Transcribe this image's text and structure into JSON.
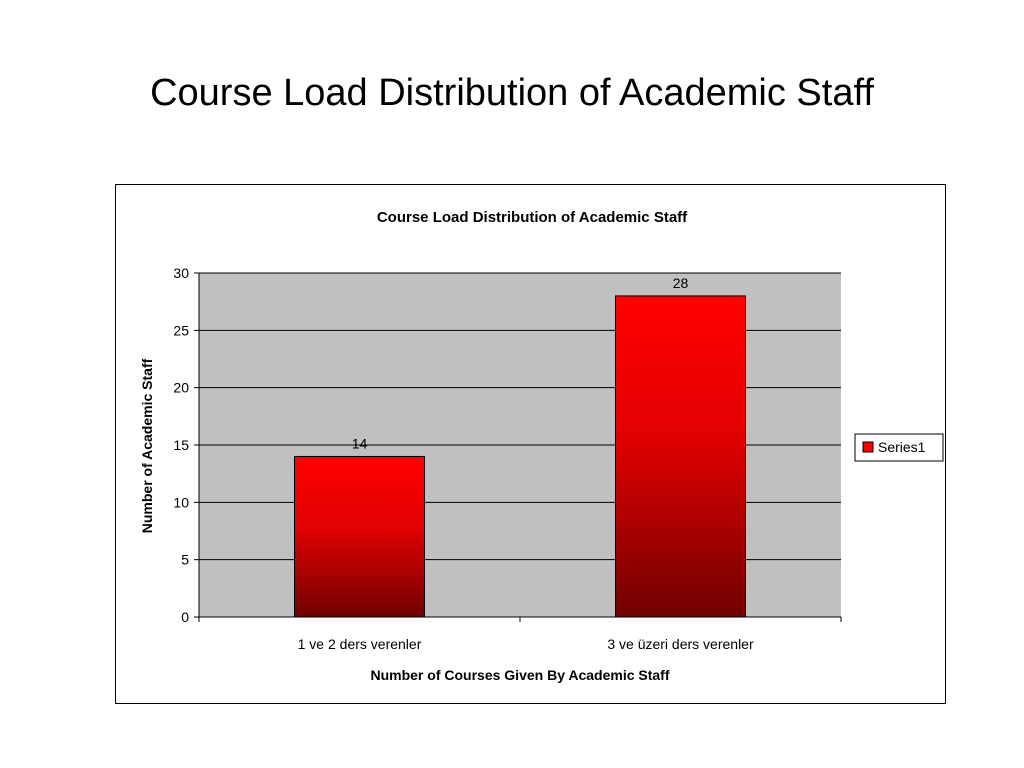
{
  "slide": {
    "title": "Course Load Distribution of Academic Staff"
  },
  "chart_data": {
    "type": "bar",
    "title": "Course Load Distribution of Academic Staff",
    "xlabel": "Number of Courses Given By Academic Staff",
    "ylabel": "Number of Academic Staff",
    "categories": [
      "1 ve 2 ders verenler",
      "3 ve üzeri ders verenler"
    ],
    "series": [
      {
        "name": "Series1",
        "values": [
          14,
          28
        ]
      }
    ],
    "ylim": [
      0,
      30
    ],
    "yticks": [
      0,
      5,
      10,
      15,
      20,
      25,
      30
    ],
    "data_labels": [
      "14",
      "28"
    ],
    "grid": true,
    "legend": "right",
    "colors": {
      "bar_top": "#ff0000",
      "bar_bottom": "#700000",
      "plot_bg": "#c0c0c0",
      "gridline": "#000000"
    }
  }
}
